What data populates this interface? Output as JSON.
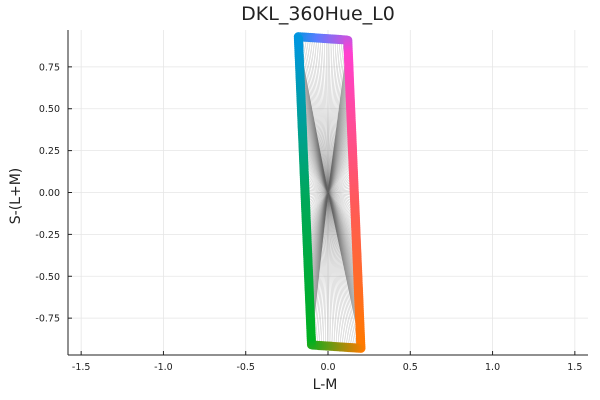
{
  "chart_data": {
    "type": "scatter",
    "title": "DKL_360Hue_L0",
    "xlabel": "L-M",
    "ylabel": "S-(L+M)",
    "xlim": [
      -1.58,
      1.58
    ],
    "ylim": [
      -0.97,
      0.97
    ],
    "xticks": [
      -1.5,
      -1.0,
      -0.5,
      0.0,
      0.5,
      1.0,
      1.5
    ],
    "xtick_labels": [
      "-1.5",
      "-1.0",
      "-0.5",
      "0.0",
      "0.5",
      "1.0",
      "1.5"
    ],
    "yticks": [
      -0.75,
      -0.5,
      -0.25,
      0.0,
      0.25,
      0.5,
      0.75
    ],
    "ytick_labels": [
      "-0.75",
      "-0.50",
      "-0.25",
      "0.00",
      "0.25",
      "0.50",
      "0.75"
    ],
    "grid": true,
    "legend": "none",
    "point_count": 360,
    "hue_points_description_corners": {
      "top_left": [
        -0.18,
        0.93
      ],
      "top_right": [
        0.12,
        0.91
      ],
      "bottom_right": [
        0.2,
        -0.93
      ],
      "bottom_left": [
        -0.1,
        -0.91
      ]
    },
    "colors": {
      "top": "#5b7cff",
      "right_upper": "#ff40d0",
      "right_lower": "#ff5a5a",
      "bottom_right": "#ff7a00",
      "bottom_left": "#00b020",
      "left_lower": "#00a85a",
      "left_upper": "#0096e0"
    }
  }
}
